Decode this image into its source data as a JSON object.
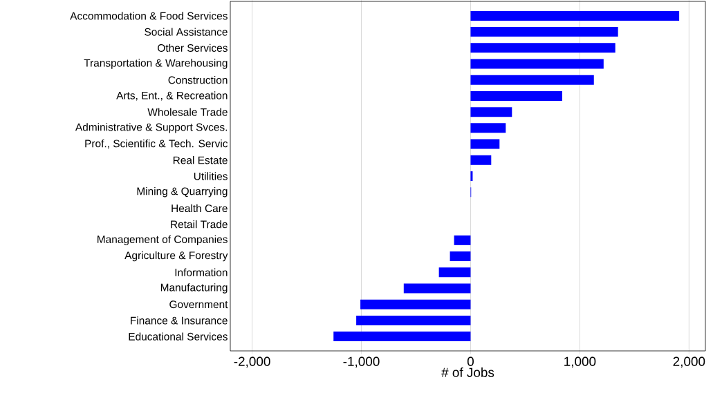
{
  "chart_data": {
    "type": "bar",
    "orientation": "horizontal",
    "xlabel": "# of Jobs",
    "categories": [
      "Accommodation & Food Services",
      "Social Assistance",
      "Other Services",
      "Transportation & Warehousing",
      "Construction",
      "Arts, Ent., & Recreation",
      "Wholesale Trade",
      "Administrative & Support Svces.",
      "Prof., Scientific & Tech. Servic",
      "Real Estate",
      "Utilities",
      "Mining & Quarrying",
      "Health Care",
      "Retail Trade",
      "Management of Companies",
      "Agriculture & Forestry",
      "Information",
      "Manufacturing",
      "Government",
      "Finance & Insurance",
      "Educational Services"
    ],
    "values": [
      1910,
      1350,
      1325,
      1218,
      1129,
      839,
      379,
      322,
      265,
      189,
      19,
      5,
      0,
      0,
      -151,
      -189,
      -290,
      -612,
      -1009,
      -1047,
      -1255
    ],
    "color": "#0000ff",
    "xlim": [
      -2200,
      2150
    ],
    "xticks": [
      {
        "value": -2000,
        "label": "-2,000"
      },
      {
        "value": -1000,
        "label": "-1,000"
      },
      0,
      {
        "value": 1000,
        "label": "1,000"
      },
      {
        "value": 2000,
        "label": "2,000"
      }
    ],
    "grid": "x"
  }
}
